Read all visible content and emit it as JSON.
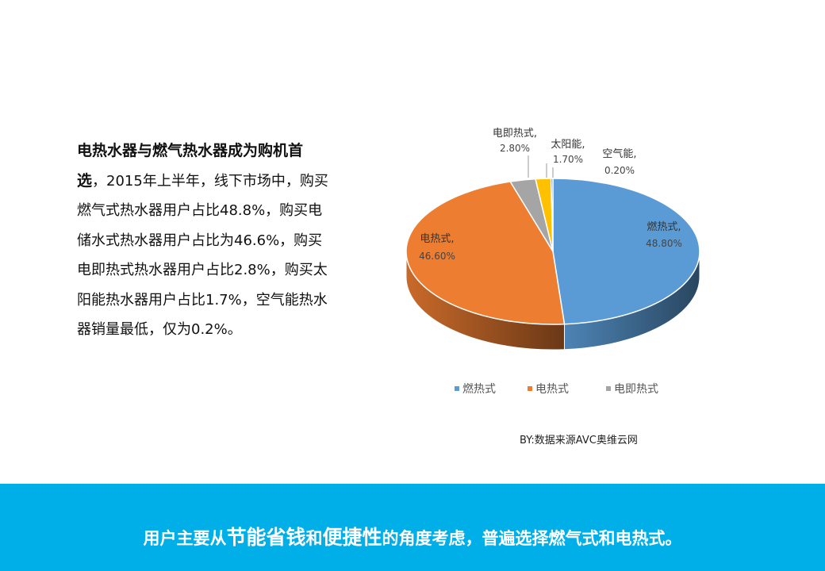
{
  "description": {
    "highlight": "电热水器与燃气热水器成为购机首选",
    "body": "，2015年上半年，线下市场中，购买燃气式热水器用户占比48.8%，购买电储水式热水器用户占比为46.6%，购买电即热式热水器用户占比2.8%，购买太阳能热水器用户占比1.7%，空气能热水器销量最低，仅为0.2%。"
  },
  "chart_data": {
    "type": "pie",
    "style": "3d",
    "slices": [
      {
        "name": "燃热式",
        "value": 48.8,
        "label": "48.80%",
        "color": "#5b9bd5"
      },
      {
        "name": "电热式",
        "value": 46.6,
        "label": "46.60%",
        "color": "#ed7d31"
      },
      {
        "name": "电即热式",
        "value": 2.8,
        "label": "2.80%",
        "color": "#a5a5a5"
      },
      {
        "name": "太阳能",
        "value": 1.7,
        "label": "1.70%",
        "color": "#ffc000"
      },
      {
        "name": "空气能",
        "value": 0.2,
        "label": "0.20%",
        "color": "#4472c4"
      }
    ],
    "legend": {
      "placement": "bottom",
      "entries": [
        "燃热式",
        "电热式",
        "电即热式"
      ]
    }
  },
  "source": "BY:数据来源AVC奥维云网",
  "footer": {
    "pre1": "用户主要从",
    "big1": "节能省钱",
    "mid": "和",
    "big2": "便捷性",
    "post": "的角度考虑，普遍选择燃气式和电热式。"
  }
}
